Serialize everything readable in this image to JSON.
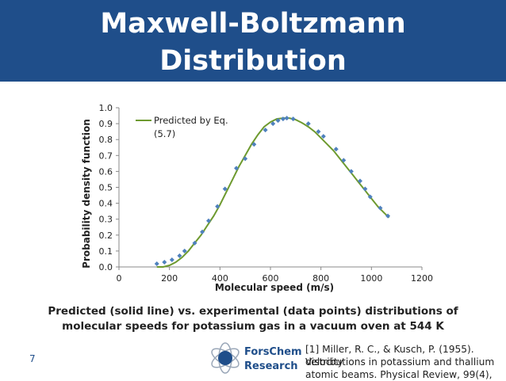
{
  "slide": {
    "title_line1": "Maxwell-Boltzmann",
    "title_line2": "Distribution",
    "caption_line1": "Predicted (solid line) vs. experimental (data points) distributions of",
    "caption_line2": "molecular speeds for potassium gas in a vacuum oven at 544 K",
    "page_number": "7",
    "logo_text_line1": "ForsChem",
    "logo_text_line2": "Research",
    "reference_line1": "[1] Miller, R. C., & Kusch, P. (1955). Velocity",
    "reference_line2": "distributions in potassium and thallium",
    "reference_line3": "atomic beams. Physical Review, 99(4),",
    "colors": {
      "title_band": "#1f4e8a",
      "curve": "#6e9a2f",
      "points": "#4f81bd"
    }
  },
  "chart_data": {
    "type": "scatter",
    "xlabel": "Molecular speed (m/s)",
    "ylabel": "Probability density function",
    "xlim": [
      0,
      1200
    ],
    "ylim": [
      0,
      1.0
    ],
    "xticks": [
      "0",
      "200",
      "400",
      "600",
      "800",
      "1000",
      "1200"
    ],
    "yticks": [
      "0.0",
      "0.1",
      "0.2",
      "0.3",
      "0.4",
      "0.5",
      "0.6",
      "0.7",
      "0.8",
      "0.9",
      "1.0"
    ],
    "legend": {
      "position": "top-left",
      "line1": "Predicted by Eq.",
      "line2": "(5.7)"
    },
    "series": [
      {
        "name": "Predicted by Eq. (5.7)",
        "style": "line",
        "x": [
          150,
          175,
          200,
          225,
          250,
          275,
          300,
          325,
          350,
          375,
          400,
          425,
          450,
          475,
          500,
          525,
          550,
          575,
          600,
          625,
          650,
          675,
          700,
          725,
          750,
          775,
          800,
          825,
          850,
          875,
          900,
          925,
          950,
          975,
          1000,
          1025,
          1050,
          1070
        ],
        "y": [
          0.0,
          0.0,
          0.01,
          0.03,
          0.06,
          0.1,
          0.15,
          0.2,
          0.26,
          0.32,
          0.39,
          0.47,
          0.55,
          0.63,
          0.7,
          0.77,
          0.83,
          0.88,
          0.91,
          0.93,
          0.935,
          0.935,
          0.925,
          0.905,
          0.88,
          0.85,
          0.81,
          0.77,
          0.73,
          0.68,
          0.63,
          0.58,
          0.53,
          0.48,
          0.43,
          0.38,
          0.34,
          0.31
        ]
      },
      {
        "name": "Experimental",
        "style": "points",
        "x": [
          150,
          180,
          210,
          240,
          260,
          300,
          330,
          355,
          390,
          420,
          465,
          500,
          535,
          580,
          610,
          630,
          650,
          665,
          690,
          750,
          790,
          810,
          860,
          890,
          920,
          955,
          975,
          995,
          1035,
          1065
        ],
        "y": [
          0.02,
          0.03,
          0.045,
          0.07,
          0.1,
          0.15,
          0.22,
          0.29,
          0.38,
          0.49,
          0.62,
          0.68,
          0.77,
          0.86,
          0.9,
          0.92,
          0.93,
          0.935,
          0.93,
          0.9,
          0.85,
          0.82,
          0.74,
          0.67,
          0.6,
          0.54,
          0.49,
          0.44,
          0.37,
          0.32
        ]
      }
    ]
  }
}
